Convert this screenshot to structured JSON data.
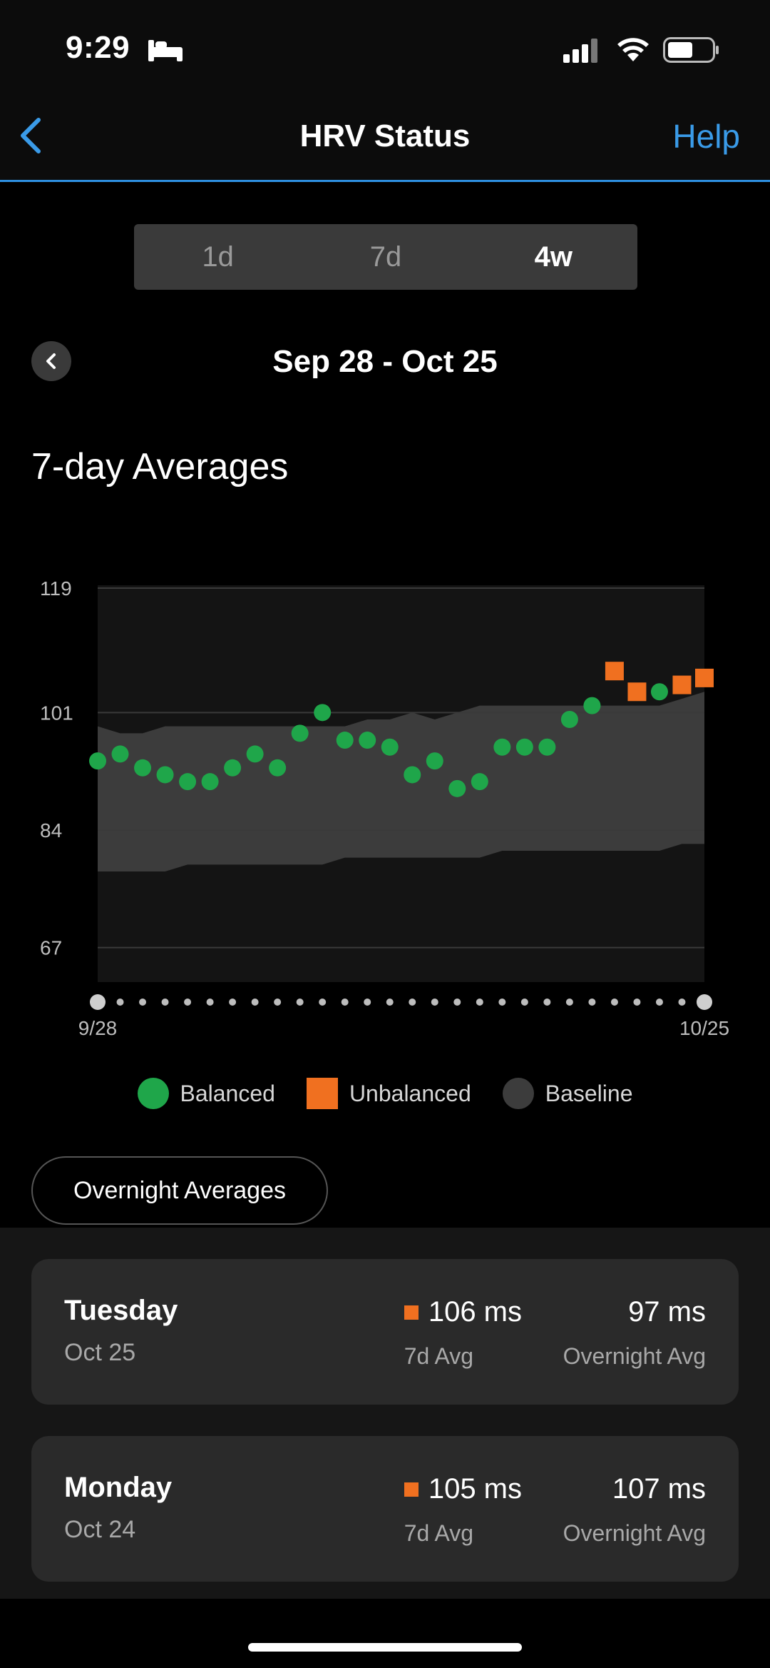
{
  "status_bar": {
    "time": "9:29"
  },
  "header": {
    "title": "HRV Status",
    "help": "Help"
  },
  "segments": [
    {
      "label": "1d",
      "active": false
    },
    {
      "label": "7d",
      "active": false
    },
    {
      "label": "4w",
      "active": true
    }
  ],
  "date_range": "Sep 28 - Oct 25",
  "section_title": "7-day Averages",
  "colors": {
    "balanced": "#1fa64a",
    "unbalanced": "#f07020",
    "baseline": "#3c3c3c",
    "accent": "#3a9be8"
  },
  "chart_data": {
    "type": "scatter",
    "y_ticks": [
      "119",
      "101",
      "84",
      "67"
    ],
    "ylim": [
      62,
      119
    ],
    "x_labels": {
      "start": "9/28",
      "end": "10/25"
    },
    "points": [
      {
        "x": 1,
        "y": 94,
        "status": "balanced"
      },
      {
        "x": 2,
        "y": 95,
        "status": "balanced"
      },
      {
        "x": 3,
        "y": 93,
        "status": "balanced"
      },
      {
        "x": 4,
        "y": 92,
        "status": "balanced"
      },
      {
        "x": 5,
        "y": 91,
        "status": "balanced"
      },
      {
        "x": 6,
        "y": 91,
        "status": "balanced"
      },
      {
        "x": 7,
        "y": 93,
        "status": "balanced"
      },
      {
        "x": 8,
        "y": 95,
        "status": "balanced"
      },
      {
        "x": 9,
        "y": 93,
        "status": "balanced"
      },
      {
        "x": 10,
        "y": 98,
        "status": "balanced"
      },
      {
        "x": 11,
        "y": 101,
        "status": "balanced"
      },
      {
        "x": 12,
        "y": 97,
        "status": "balanced"
      },
      {
        "x": 13,
        "y": 97,
        "status": "balanced"
      },
      {
        "x": 14,
        "y": 96,
        "status": "balanced"
      },
      {
        "x": 15,
        "y": 92,
        "status": "balanced"
      },
      {
        "x": 16,
        "y": 94,
        "status": "balanced"
      },
      {
        "x": 17,
        "y": 90,
        "status": "balanced"
      },
      {
        "x": 18,
        "y": 91,
        "status": "balanced"
      },
      {
        "x": 19,
        "y": 96,
        "status": "balanced"
      },
      {
        "x": 20,
        "y": 96,
        "status": "balanced"
      },
      {
        "x": 21,
        "y": 96,
        "status": "balanced"
      },
      {
        "x": 22,
        "y": 100,
        "status": "balanced"
      },
      {
        "x": 23,
        "y": 102,
        "status": "balanced"
      },
      {
        "x": 24,
        "y": 107,
        "status": "unbalanced"
      },
      {
        "x": 25,
        "y": 104,
        "status": "unbalanced"
      },
      {
        "x": 26,
        "y": 104,
        "status": "balanced"
      },
      {
        "x": 27,
        "y": 105,
        "status": "unbalanced"
      },
      {
        "x": 28,
        "y": 106,
        "status": "unbalanced"
      }
    ],
    "baseline_upper": [
      99,
      98,
      98,
      99,
      99,
      99,
      99,
      99,
      99,
      99,
      99,
      99,
      100,
      100,
      101,
      100,
      101,
      102,
      102,
      102,
      102,
      102,
      102,
      102,
      102,
      102,
      103,
      104
    ],
    "baseline_lower": [
      78,
      78,
      78,
      78,
      79,
      79,
      79,
      79,
      79,
      79,
      79,
      80,
      80,
      80,
      80,
      80,
      80,
      80,
      81,
      81,
      81,
      81,
      81,
      81,
      81,
      81,
      82,
      82
    ]
  },
  "legend": [
    {
      "label": "Balanced",
      "shape": "circle"
    },
    {
      "label": "Unbalanced",
      "shape": "square"
    },
    {
      "label": "Baseline",
      "shape": "circle"
    }
  ],
  "overnight_button": "Overnight Averages",
  "days": [
    {
      "day": "Tuesday",
      "date": "Oct 25",
      "avg7": "106 ms",
      "avg7_label": "7d Avg",
      "overnight": "97 ms",
      "overnight_label": "Overnight Avg"
    },
    {
      "day": "Monday",
      "date": "Oct 24",
      "avg7": "105 ms",
      "avg7_label": "7d Avg",
      "overnight": "107 ms",
      "overnight_label": "Overnight Avg"
    }
  ]
}
